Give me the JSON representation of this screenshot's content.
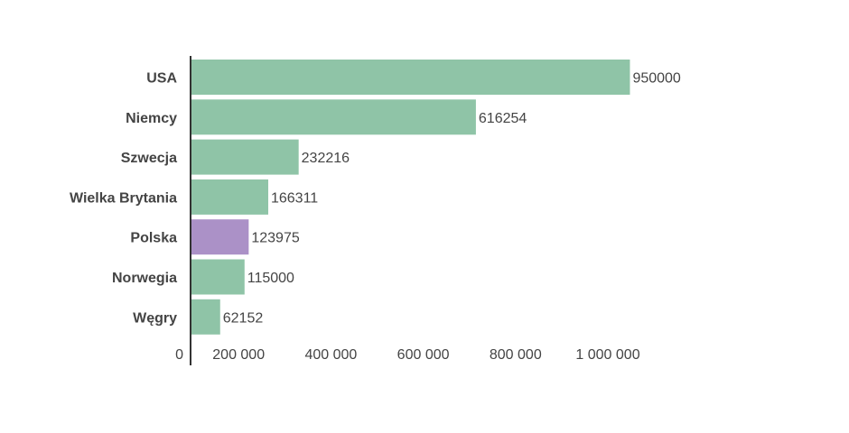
{
  "chart_data": {
    "type": "bar",
    "orientation": "horizontal",
    "title": "",
    "xlabel": "",
    "ylabel": "",
    "categories": [
      "USA",
      "Niemcy",
      "Szwecja",
      "Wielka Brytania",
      "Polska",
      "Norwegia",
      "Węgry"
    ],
    "values": [
      950000,
      616254,
      232216,
      166311,
      123975,
      115000,
      62152
    ],
    "value_labels": [
      "950000",
      "616254",
      "232216",
      "166311",
      "123975",
      "115000",
      "62152"
    ],
    "xlim": [
      0,
      1000000
    ],
    "x_ticks": [
      0,
      200000,
      400000,
      600000,
      800000,
      1000000
    ],
    "x_tick_labels": [
      "0",
      "200 000",
      "400 000",
      "600 000",
      "800 000",
      "1 000 000"
    ],
    "grid": false,
    "legend": "none",
    "colors": {
      "default_bar": "#8fc4a7",
      "highlight_bar": "#ab91c7",
      "axis": "#333333",
      "text": "#444444"
    },
    "highlight_category": "Polska"
  }
}
